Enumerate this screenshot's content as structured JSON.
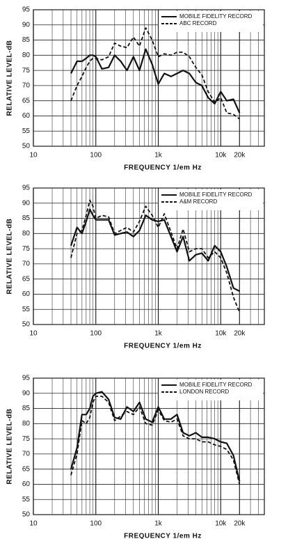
{
  "chart_data": [
    {
      "type": "line",
      "y_label": "RELATIVE LEVEL-dB",
      "x_label": "FREQUENCY 1/em Hz",
      "log_x": true,
      "grid": true,
      "legend": "upper right",
      "xlim": [
        10,
        50000
      ],
      "ylim": [
        50,
        95
      ],
      "xticks": [
        10,
        100,
        {
          "value": 1000,
          "label": "1k"
        },
        {
          "value": 10000,
          "label": "10k"
        },
        {
          "value": 20000,
          "label": "20k"
        }
      ],
      "yticks": [
        50,
        55,
        60,
        65,
        70,
        75,
        80,
        85,
        90,
        95
      ],
      "x": [
        40,
        50,
        60,
        70,
        80,
        90,
        100,
        125,
        160,
        200,
        250,
        315,
        400,
        500,
        630,
        800,
        1000,
        1250,
        1600,
        2000,
        2500,
        3150,
        4000,
        5000,
        6300,
        8000,
        10000,
        12500,
        16000,
        20000
      ],
      "series": [
        {
          "name": "MOBILE FIDELITY RECORD",
          "color": "#111111",
          "dash": false,
          "values": [
            74,
            78,
            78,
            79,
            80,
            80,
            79.5,
            75.5,
            76,
            80,
            78,
            75,
            79.5,
            75,
            82,
            77,
            70.5,
            74,
            73,
            74,
            75,
            74,
            71,
            70,
            66,
            64,
            68,
            65,
            65.5,
            61
          ]
        },
        {
          "name": "ABC RECORD",
          "color": "#111111",
          "dash": true,
          "values": [
            65,
            70,
            73,
            76,
            78,
            79,
            79,
            78.5,
            79.5,
            84,
            83,
            82.5,
            86,
            83,
            89,
            85,
            79.5,
            80.5,
            80,
            81,
            81,
            79.5,
            76,
            73.5,
            68,
            64.5,
            66,
            61,
            60.5,
            59
          ]
        }
      ]
    },
    {
      "type": "line",
      "y_label": "RELATIVE LEVEL-dB",
      "x_label": "FREQUENCY 1/em Hz",
      "log_x": true,
      "grid": true,
      "legend": "upper right",
      "xlim": [
        10,
        50000
      ],
      "ylim": [
        50,
        95
      ],
      "xticks": [
        10,
        100,
        {
          "value": 1000,
          "label": "1k"
        },
        {
          "value": 10000,
          "label": "10k"
        },
        {
          "value": 20000,
          "label": "20k"
        }
      ],
      "yticks": [
        50,
        55,
        60,
        65,
        70,
        75,
        80,
        85,
        90,
        95
      ],
      "x": [
        40,
        50,
        60,
        70,
        80,
        90,
        100,
        125,
        160,
        200,
        250,
        315,
        400,
        500,
        630,
        800,
        1000,
        1250,
        1600,
        2000,
        2500,
        3150,
        4000,
        5000,
        6300,
        8000,
        10000,
        12500,
        16000,
        20000
      ],
      "series": [
        {
          "name": "MOBILE FIDELITY RECORD",
          "color": "#111111",
          "dash": false,
          "values": [
            76,
            82,
            80,
            84,
            88,
            86,
            84.5,
            84.5,
            84.5,
            79.5,
            80,
            80.5,
            79,
            81,
            86,
            84.5,
            84,
            84.5,
            79,
            74,
            79,
            71,
            73,
            73.5,
            71,
            76,
            74,
            69,
            62,
            61
          ]
        },
        {
          "name": "A&M RECORD",
          "color": "#111111",
          "dash": true,
          "values": [
            72,
            80,
            81,
            86,
            91,
            89,
            85,
            86,
            85.5,
            80,
            81,
            82,
            80.5,
            84,
            89,
            86,
            82,
            86.5,
            80.5,
            75,
            81.5,
            74,
            75,
            75,
            72,
            74,
            72,
            67,
            59,
            54
          ]
        }
      ]
    },
    {
      "type": "line",
      "y_label": "RELATIVE LEVEL-dB",
      "x_label": "FREQUENCY 1/em Hz",
      "log_x": true,
      "grid": true,
      "legend": "upper right",
      "xlim": [
        10,
        50000
      ],
      "ylim": [
        50,
        95
      ],
      "xticks": [
        10,
        100,
        {
          "value": 1000,
          "label": "1k"
        },
        {
          "value": 10000,
          "label": "10k"
        },
        {
          "value": 20000,
          "label": "20k"
        }
      ],
      "yticks": [
        50,
        55,
        60,
        65,
        70,
        75,
        80,
        85,
        90,
        95
      ],
      "x": [
        40,
        50,
        60,
        70,
        80,
        90,
        100,
        125,
        160,
        200,
        250,
        315,
        400,
        500,
        630,
        800,
        1000,
        1250,
        1600,
        2000,
        2500,
        3150,
        4000,
        5000,
        6300,
        8000,
        10000,
        12500,
        16000,
        20000
      ],
      "series": [
        {
          "name": "MOBILE FIDELITY RECORD",
          "color": "#111111",
          "dash": false,
          "values": [
            65,
            72,
            83,
            83,
            85,
            89,
            90,
            90.5,
            88,
            82,
            81.5,
            85.5,
            84,
            87,
            81.5,
            80.5,
            85.5,
            81.5,
            81.5,
            83,
            77,
            76,
            77,
            75.5,
            75.5,
            75,
            74,
            73.5,
            69.5,
            61
          ]
        },
        {
          "name": "LONDON RECORD",
          "color": "#111111",
          "dash": true,
          "values": [
            63,
            70,
            81,
            80,
            82,
            87,
            89,
            89,
            87,
            81,
            82.5,
            84,
            83,
            85.5,
            80,
            79.5,
            84.5,
            81,
            80.5,
            81.5,
            76,
            75,
            75,
            74,
            74,
            73,
            72.5,
            71.5,
            68,
            60
          ]
        }
      ]
    }
  ]
}
